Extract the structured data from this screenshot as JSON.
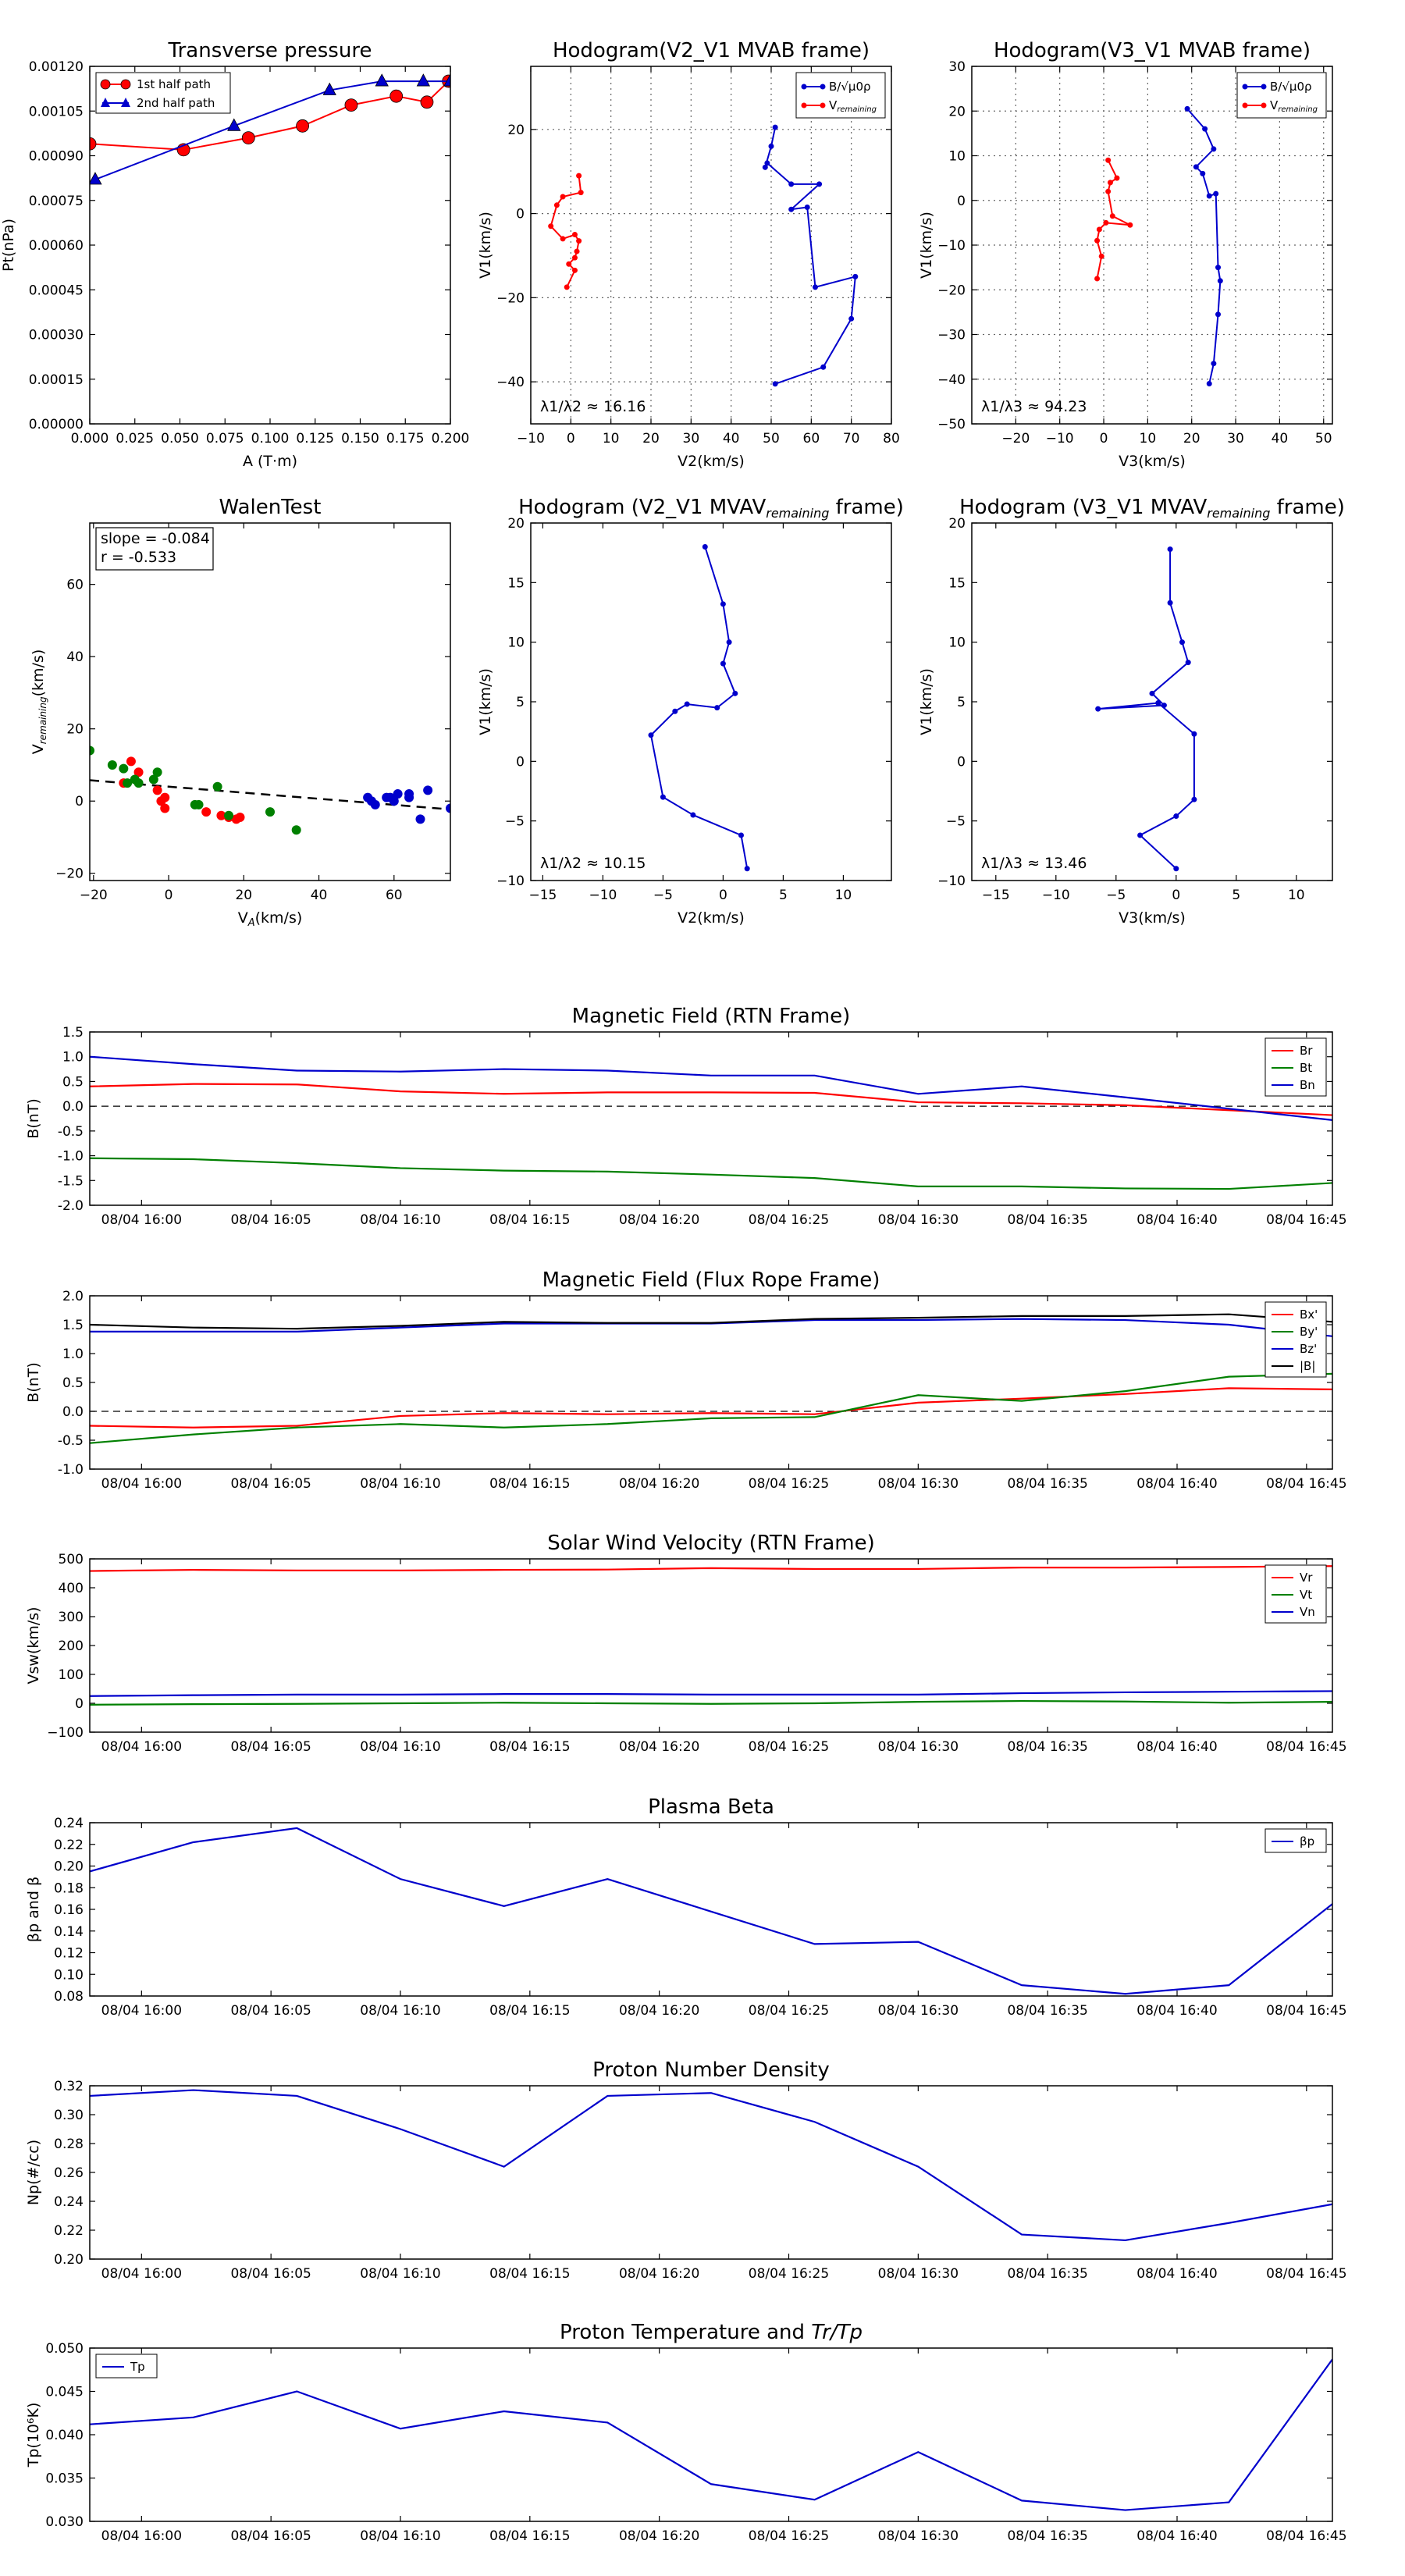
{
  "chart_data": [
    {
      "id": "tp",
      "type": "scatter",
      "title": "Transverse pressure",
      "xlabel": "A (T·m)",
      "ylabel": "Pt(nPa)",
      "xlim": [
        0,
        0.2
      ],
      "ylim": [
        0,
        0.0012
      ],
      "xticks": [
        0,
        0.025,
        0.05,
        0.075,
        0.1,
        0.125,
        0.15,
        0.175,
        0.2
      ],
      "xticklabels": [
        "0.000",
        "0.025",
        "0.050",
        "0.075",
        "0.100",
        "0.125",
        "0.150",
        "0.175",
        "0.200"
      ],
      "yticks": [
        0,
        0.00015,
        0.0003,
        0.00045,
        0.0006,
        0.00075,
        0.0009,
        0.00105,
        0.0012
      ],
      "yticklabels": [
        "0.00000",
        "0.00015",
        "0.00030",
        "0.00045",
        "0.00060",
        "0.00075",
        "0.00090",
        "0.00105",
        "0.00120"
      ],
      "grid": false,
      "legend": "top-left",
      "series": [
        {
          "name": "1st half path",
          "color": "#ff0000",
          "marker": "circle",
          "x": [
            0.0,
            0.052,
            0.088,
            0.118,
            0.145,
            0.17,
            0.187,
            0.199
          ],
          "y": [
            0.00094,
            0.00092,
            0.00096,
            0.001,
            0.00107,
            0.0011,
            0.00108,
            0.00115
          ]
        },
        {
          "name": "2nd half path",
          "color": "#0000cc",
          "marker": "triangle",
          "x": [
            0.003,
            0.08,
            0.133,
            0.162,
            0.185,
            0.2
          ],
          "y": [
            0.00082,
            0.001,
            0.00112,
            0.00115,
            0.00115,
            0.00115
          ]
        }
      ]
    },
    {
      "id": "h1",
      "type": "line",
      "title": "Hodogram(V2_V1 MVAB frame)",
      "xlabel": "V2(km/s)",
      "ylabel": "V1(km/s)",
      "xlim": [
        -10,
        80
      ],
      "ylim": [
        -50,
        35
      ],
      "xticks": [
        -10,
        0,
        10,
        20,
        30,
        40,
        50,
        60,
        70,
        80
      ],
      "yticks": [
        -40,
        -20,
        0,
        20
      ],
      "grid": true,
      "legend": "top-right",
      "annotation": "λ1/λ2 ≈ 16.16",
      "series": [
        {
          "name": "B/√μ0ρ",
          "color": "#0000cc",
          "marker": "dot",
          "x": [
            51,
            50,
            48.5,
            49,
            55,
            62,
            55,
            59,
            61,
            71,
            70,
            63,
            51
          ],
          "y": [
            20.5,
            16,
            11,
            12,
            7,
            7,
            1,
            1.5,
            -17.5,
            -15,
            -25,
            -36.5,
            -40.5
          ]
        },
        {
          "name": "Vremaining",
          "color": "#ff0000",
          "marker": "dot",
          "x": [
            2,
            2.5,
            -2,
            -3.5,
            -5,
            -2,
            1,
            2,
            1.5,
            1,
            -0.5,
            1,
            -1
          ],
          "y": [
            9,
            5,
            4,
            2,
            -3,
            -6,
            -5,
            -6.5,
            -9,
            -10.5,
            -12,
            -13.5,
            -17.5
          ]
        }
      ]
    },
    {
      "id": "h2",
      "type": "line",
      "title": "Hodogram(V3_V1 MVAB frame)",
      "xlabel": "V3(km/s)",
      "ylabel": "V1(km/s)",
      "xlim": [
        -30,
        52
      ],
      "ylim": [
        -50,
        30
      ],
      "xticks": [
        -20,
        -10,
        0,
        10,
        20,
        30,
        40,
        50
      ],
      "yticks": [
        -50,
        -40,
        -30,
        -20,
        -10,
        0,
        10,
        20,
        30
      ],
      "grid": true,
      "legend": "top-right",
      "annotation": "λ1/λ3 ≈ 94.23",
      "series": [
        {
          "name": "B/√μ0ρ",
          "color": "#0000cc",
          "marker": "dot",
          "x": [
            19,
            23,
            25,
            21,
            22.5,
            24,
            25.5,
            26,
            26.5,
            26,
            25,
            24
          ],
          "y": [
            20.5,
            16,
            11.5,
            7.5,
            6,
            1,
            1.5,
            -15,
            -18,
            -25.5,
            -36.5,
            -41
          ]
        },
        {
          "name": "Vremaining",
          "color": "#ff0000",
          "marker": "dot",
          "x": [
            1,
            3,
            1.5,
            1,
            2,
            6,
            0.5,
            -1,
            -1.5,
            -0.5,
            -1.5
          ],
          "y": [
            9,
            5,
            4,
            2,
            -3.5,
            -5.5,
            -5,
            -6.5,
            -9,
            -12.5,
            -17.5
          ]
        }
      ]
    },
    {
      "id": "wt",
      "type": "scatter",
      "title": "WalenTest",
      "xlabel": "VA(km/s)",
      "ylabel": "Vremaining(km/s)",
      "xlim": [
        -21,
        75
      ],
      "ylim": [
        -22,
        77
      ],
      "xticks": [
        -20,
        0,
        20,
        40,
        60
      ],
      "yticks": [
        -20,
        0,
        20,
        40,
        60
      ],
      "grid": false,
      "annotation_lines": [
        "slope = -0.084",
        "r = -0.533"
      ],
      "fit": {
        "slope": -0.084,
        "intercept": 4.0
      },
      "series": [
        {
          "color": "#ff0000",
          "x": [
            -12,
            -10,
            -8,
            -3,
            -2,
            -1,
            -1,
            10,
            14,
            16,
            18,
            19
          ],
          "y": [
            5,
            11,
            8,
            3,
            0,
            1,
            -2,
            -3,
            -4,
            -4.5,
            -5,
            -4.5
          ]
        },
        {
          "color": "#008000",
          "x": [
            -21,
            -15,
            -12,
            -11,
            -9,
            -8,
            -4,
            -3,
            7,
            8,
            13,
            16,
            27,
            34
          ],
          "y": [
            14,
            10,
            9,
            5,
            6,
            5,
            6,
            8,
            -1,
            -1,
            4,
            -4,
            -3,
            -8
          ]
        },
        {
          "color": "#0000cc",
          "x": [
            53,
            54,
            55,
            58,
            59,
            60,
            61,
            64,
            64,
            67,
            69,
            75
          ],
          "y": [
            1,
            0,
            -1,
            1,
            1,
            0,
            2,
            1,
            2,
            -5,
            3,
            -2
          ]
        }
      ]
    },
    {
      "id": "h3",
      "type": "line",
      "title": "Hodogram (V2_V1 MVAV",
      "title_sub": "remaining",
      "title_end": " frame)",
      "xlabel": "V2(km/s)",
      "ylabel": "V1(km/s)",
      "xlim": [
        -16,
        14
      ],
      "ylim": [
        -10,
        20
      ],
      "xticks": [
        -15,
        -10,
        -5,
        0,
        5,
        10
      ],
      "yticks": [
        -10,
        -5,
        0,
        5,
        10,
        15,
        20
      ],
      "grid": false,
      "annotation": "λ1/λ2 ≈ 10.15",
      "series": [
        {
          "color": "#0000cc",
          "marker": "dot",
          "x": [
            -1.5,
            0,
            0.5,
            0,
            1,
            -0.5,
            -3,
            -4,
            -6,
            -5,
            -2.5,
            1.5,
            2
          ],
          "y": [
            18,
            13.2,
            10,
            8.2,
            5.7,
            4.5,
            4.8,
            4.2,
            2.2,
            -3,
            -4.5,
            -6.2,
            -9
          ]
        }
      ]
    },
    {
      "id": "h4",
      "type": "line",
      "title": "Hodogram (V3_V1 MVAV",
      "title_sub": "remaining",
      "title_end": " frame)",
      "xlabel": "V3(km/s)",
      "ylabel": "V1(km/s)",
      "xlim": [
        -17,
        13
      ],
      "ylim": [
        -10,
        20
      ],
      "xticks": [
        -15,
        -10,
        -5,
        0,
        5,
        10
      ],
      "yticks": [
        -10,
        -5,
        0,
        5,
        10,
        15,
        20
      ],
      "grid": false,
      "annotation": "λ1/λ3 ≈ 13.46",
      "series": [
        {
          "color": "#0000cc",
          "marker": "dot",
          "x": [
            -0.5,
            -0.5,
            0.5,
            1,
            -2,
            -1,
            -6.5,
            -1.5,
            1.5,
            1.5,
            0,
            -3,
            0
          ],
          "y": [
            17.8,
            13.3,
            10,
            8.3,
            5.7,
            4.7,
            4.4,
            4.9,
            2.3,
            -3.2,
            -4.6,
            -6.2,
            -9
          ]
        }
      ]
    },
    {
      "id": "ts1",
      "type": "line",
      "title": "Magnetic Field (RTN Frame)",
      "ylabel": "B(nT)",
      "ylim": [
        -2.0,
        1.5
      ],
      "yticks": [
        -2.0,
        -1.5,
        -1.0,
        -0.5,
        0.0,
        0.5,
        1.0,
        1.5
      ],
      "yticklabels": [
        "-2.0",
        "-1.5",
        "-1.0",
        "-0.5",
        "0.0",
        "0.5",
        "1.0",
        "1.5"
      ],
      "zero_line": true,
      "legend": "top-right",
      "series": [
        {
          "name": "Br",
          "color": "#ff0000",
          "values": [
            0.4,
            0.45,
            0.44,
            0.3,
            0.25,
            0.28,
            0.28,
            0.27,
            0.08,
            0.06,
            0.02,
            -0.08,
            -0.18
          ]
        },
        {
          "name": "Bt",
          "color": "#008000",
          "values": [
            -1.05,
            -1.07,
            -1.15,
            -1.25,
            -1.3,
            -1.32,
            -1.38,
            -1.45,
            -1.62,
            -1.62,
            -1.66,
            -1.67,
            -1.55
          ]
        },
        {
          "name": "Bn",
          "color": "#0000cc",
          "values": [
            1.0,
            0.85,
            0.72,
            0.7,
            0.75,
            0.72,
            0.62,
            0.62,
            0.25,
            0.4,
            0.18,
            -0.05,
            -0.28
          ]
        }
      ]
    },
    {
      "id": "ts2",
      "type": "line",
      "title": "Magnetic Field (Flux Rope Frame)",
      "ylabel": "B(nT)",
      "ylim": [
        -1.0,
        2.0
      ],
      "yticks": [
        -1.0,
        -0.5,
        0.0,
        0.5,
        1.0,
        1.5,
        2.0
      ],
      "yticklabels": [
        "-1.0",
        "-0.5",
        "0.0",
        "0.5",
        "1.0",
        "1.5",
        "2.0"
      ],
      "zero_line": true,
      "legend": "top-right",
      "series": [
        {
          "name": "Bx'",
          "color": "#ff0000",
          "values": [
            -0.25,
            -0.28,
            -0.25,
            -0.08,
            -0.03,
            -0.05,
            -0.03,
            -0.05,
            0.15,
            0.22,
            0.3,
            0.4,
            0.38
          ]
        },
        {
          "name": "By'",
          "color": "#008000",
          "values": [
            -0.55,
            -0.4,
            -0.28,
            -0.22,
            -0.28,
            -0.22,
            -0.12,
            -0.1,
            0.28,
            0.18,
            0.35,
            0.6,
            0.65
          ]
        },
        {
          "name": "Bz'",
          "color": "#0000cc",
          "values": [
            1.38,
            1.38,
            1.38,
            1.45,
            1.52,
            1.52,
            1.52,
            1.58,
            1.58,
            1.6,
            1.58,
            1.5,
            1.3
          ]
        },
        {
          "name": "|B|",
          "color": "#000000",
          "values": [
            1.5,
            1.45,
            1.43,
            1.48,
            1.55,
            1.53,
            1.53,
            1.6,
            1.62,
            1.65,
            1.65,
            1.68,
            1.55
          ]
        }
      ]
    },
    {
      "id": "ts3",
      "type": "line",
      "title": "Solar Wind Velocity (RTN Frame)",
      "ylabel": "Vsw(km/s)",
      "ylim": [
        -100,
        500
      ],
      "yticks": [
        -100,
        0,
        100,
        200,
        300,
        400,
        500
      ],
      "yticklabels": [
        "−100",
        "0",
        "100",
        "200",
        "300",
        "400",
        "500"
      ],
      "legend": "top-right",
      "series": [
        {
          "name": "Vr",
          "color": "#ff0000",
          "values": [
            458,
            462,
            460,
            460,
            462,
            463,
            468,
            465,
            465,
            470,
            470,
            472,
            475
          ]
        },
        {
          "name": "Vt",
          "color": "#008000",
          "values": [
            -5,
            -3,
            -2,
            0,
            2,
            0,
            -2,
            0,
            5,
            8,
            6,
            2,
            5
          ]
        },
        {
          "name": "Vn",
          "color": "#0000cc",
          "values": [
            25,
            28,
            30,
            30,
            32,
            32,
            30,
            30,
            30,
            35,
            38,
            40,
            42
          ]
        }
      ]
    },
    {
      "id": "ts4",
      "type": "line",
      "title": "Plasma Beta",
      "ylabel": "βp and β",
      "ylim": [
        0.08,
        0.24
      ],
      "yticks": [
        0.08,
        0.1,
        0.12,
        0.14,
        0.16,
        0.18,
        0.2,
        0.22,
        0.24
      ],
      "yticklabels": [
        "0.08",
        "0.10",
        "0.12",
        "0.14",
        "0.16",
        "0.18",
        "0.20",
        "0.22",
        "0.24"
      ],
      "legend": "top-right",
      "series": [
        {
          "name": "βp",
          "color": "#0000cc",
          "values": [
            0.195,
            0.222,
            0.235,
            0.188,
            0.163,
            0.188,
            0.158,
            0.128,
            0.13,
            0.09,
            0.082,
            0.09,
            0.165
          ]
        }
      ]
    },
    {
      "id": "ts5",
      "type": "line",
      "title": "Proton Number Density",
      "ylabel": "Np(#/cc)",
      "ylim": [
        0.2,
        0.32
      ],
      "yticks": [
        0.2,
        0.22,
        0.24,
        0.26,
        0.28,
        0.3,
        0.32
      ],
      "yticklabels": [
        "0.20",
        "0.22",
        "0.24",
        "0.26",
        "0.28",
        "0.30",
        "0.32"
      ],
      "series": [
        {
          "color": "#0000cc",
          "values": [
            0.313,
            0.317,
            0.313,
            0.29,
            0.264,
            0.313,
            0.315,
            0.295,
            0.264,
            0.217,
            0.213,
            0.225,
            0.238
          ]
        }
      ]
    },
    {
      "id": "ts6",
      "type": "line",
      "title": "Proton Temperature and Tr/Tp",
      "ylabel": "Tp(10⁶K)",
      "ylim": [
        0.03,
        0.05
      ],
      "yticks": [
        0.03,
        0.035,
        0.04,
        0.045,
        0.05
      ],
      "yticklabels": [
        "0.030",
        "0.035",
        "0.040",
        "0.045",
        "0.050"
      ],
      "legend": "top-left",
      "series": [
        {
          "name": "Tp",
          "color": "#0000cc",
          "values": [
            0.0412,
            0.042,
            0.045,
            0.0407,
            0.0427,
            0.0414,
            0.0343,
            0.0325,
            0.038,
            0.0324,
            0.0313,
            0.0322,
            0.0487
          ]
        }
      ]
    }
  ],
  "time_axis": {
    "start": "08/04 15:58",
    "end": "08/04 16:46",
    "sample_times": [
      "08/04 15:58",
      "08/04 16:02",
      "08/04 16:06",
      "08/04 16:10",
      "08/04 16:14",
      "08/04 16:18",
      "08/04 16:22",
      "08/04 16:26",
      "08/04 16:30",
      "08/04 16:34",
      "08/04 16:38",
      "08/04 16:42",
      "08/04 16:46"
    ],
    "tick_times": [
      "08/04 16:00",
      "08/04 16:05",
      "08/04 16:10",
      "08/04 16:15",
      "08/04 16:20",
      "08/04 16:25",
      "08/04 16:30",
      "08/04 16:35",
      "08/04 16:40",
      "08/04 16:45"
    ],
    "tick_labels": [
      "08/04 16:00",
      "08/04 16:05",
      "08/04 16:10",
      "08/04 16:15",
      "08/04 16:20",
      "08/04 16:25",
      "08/04 16:30",
      "08/04 16:35",
      "08/04 16:40",
      "08/04 16:45"
    ]
  }
}
